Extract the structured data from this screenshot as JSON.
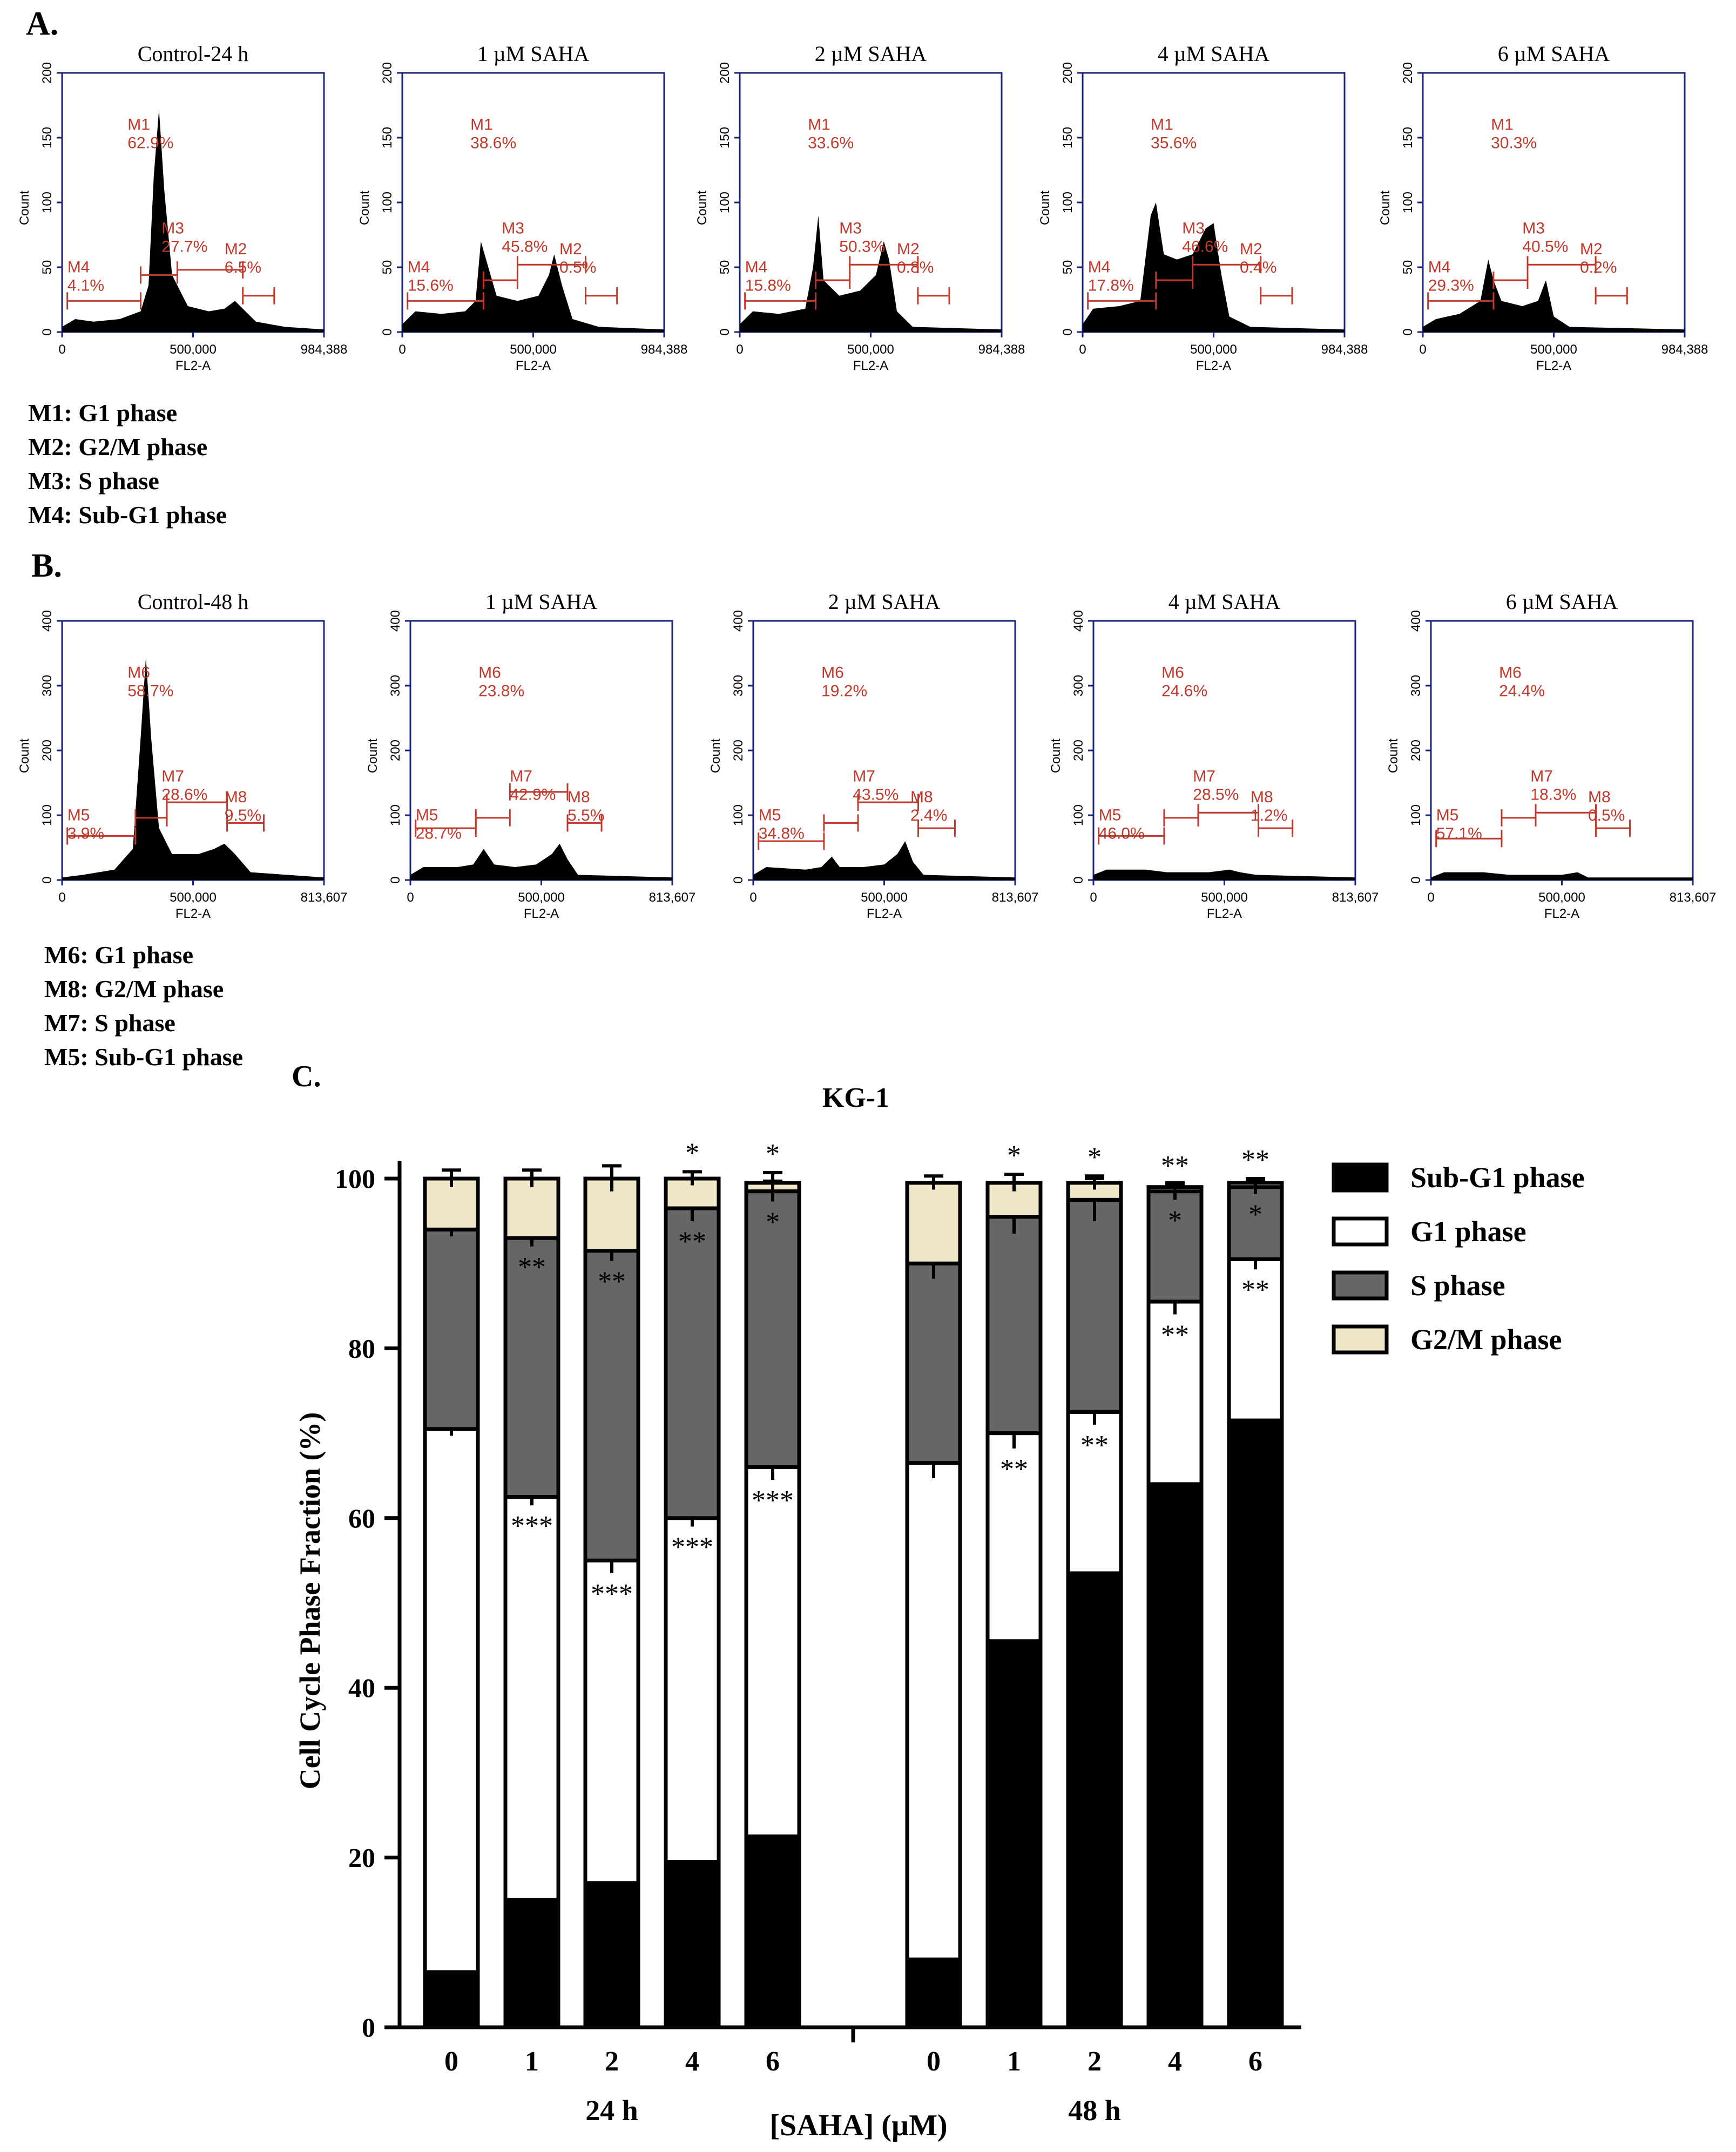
{
  "section_labels": {
    "a": "A.",
    "b": "B.",
    "c": "C."
  },
  "legend_a": [
    "M1: G1 phase",
    "M2: G2/M phase",
    "M3: S phase",
    "M4: Sub-G1 phase"
  ],
  "legend_b": [
    "M6: G1 phase",
    "M8: G2/M phase",
    "M7: S phase",
    "M5: Sub-G1 phase"
  ],
  "panel_a": {
    "y_axis_label": "Count",
    "x_axis_label": "FL2-A",
    "y_ticks": [
      "0",
      "50",
      "100",
      "150",
      "200"
    ],
    "x_ticks": [
      "0",
      "500,000",
      "984,388"
    ],
    "histograms": [
      {
        "title": "Control-24 h",
        "markers": [
          {
            "name": "M1",
            "pct": "62.9%"
          },
          {
            "name": "M3",
            "pct": "27.7%"
          },
          {
            "name": "M4",
            "pct": "4.1%"
          },
          {
            "name": "M2",
            "pct": "6.5%"
          }
        ]
      },
      {
        "title": "1 µM SAHA",
        "markers": [
          {
            "name": "M1",
            "pct": "38.6%"
          },
          {
            "name": "M3",
            "pct": "45.8%"
          },
          {
            "name": "M4",
            "pct": "15.6%"
          },
          {
            "name": "M2",
            "pct": "0.5%"
          }
        ]
      },
      {
        "title": "2 µM SAHA",
        "markers": [
          {
            "name": "M1",
            "pct": "33.6%"
          },
          {
            "name": "M3",
            "pct": "50.3%"
          },
          {
            "name": "M4",
            "pct": "15.8%"
          },
          {
            "name": "M2",
            "pct": "0.8%"
          }
        ]
      },
      {
        "title": "4 µM SAHA",
        "markers": [
          {
            "name": "M1",
            "pct": "35.6%"
          },
          {
            "name": "M3",
            "pct": "46.6%"
          },
          {
            "name": "M4",
            "pct": "17.8%"
          },
          {
            "name": "M2",
            "pct": "0.4%"
          }
        ]
      },
      {
        "title": "6 µM SAHA",
        "markers": [
          {
            "name": "M1",
            "pct": "30.3%"
          },
          {
            "name": "M3",
            "pct": "40.5%"
          },
          {
            "name": "M4",
            "pct": "29.3%"
          },
          {
            "name": "M2",
            "pct": "0.2%"
          }
        ]
      }
    ]
  },
  "panel_b": {
    "y_axis_label": "Count",
    "x_axis_label": "FL2-A",
    "y_ticks": [
      "0",
      "100",
      "200",
      "300",
      "400"
    ],
    "x_ticks": [
      "0",
      "500,000",
      "813,607"
    ],
    "histograms": [
      {
        "title": "Control-48 h",
        "markers": [
          {
            "name": "M6",
            "pct": "58.7%"
          },
          {
            "name": "M7",
            "pct": "28.6%"
          },
          {
            "name": "M5",
            "pct": "3.9%"
          },
          {
            "name": "M8",
            "pct": "9.5%"
          }
        ]
      },
      {
        "title": "1 µM SAHA",
        "markers": [
          {
            "name": "M6",
            "pct": "23.8%"
          },
          {
            "name": "M7",
            "pct": "42.9%"
          },
          {
            "name": "M5",
            "pct": "28.7%"
          },
          {
            "name": "M8",
            "pct": "5.5%"
          }
        ]
      },
      {
        "title": "2 µM SAHA",
        "markers": [
          {
            "name": "M6",
            "pct": "19.2%"
          },
          {
            "name": "M7",
            "pct": "43.5%"
          },
          {
            "name": "M5",
            "pct": "34.8%"
          },
          {
            "name": "M8",
            "pct": "2.4%"
          }
        ]
      },
      {
        "title": "4 µM SAHA",
        "markers": [
          {
            "name": "M6",
            "pct": "24.6%"
          },
          {
            "name": "M7",
            "pct": "28.5%"
          },
          {
            "name": "M5",
            "pct": "46.0%"
          },
          {
            "name": "M8",
            "pct": "1.2%"
          }
        ]
      },
      {
        "title": "6 µM SAHA",
        "markers": [
          {
            "name": "M6",
            "pct": "24.4%"
          },
          {
            "name": "M7",
            "pct": "18.3%"
          },
          {
            "name": "M5",
            "pct": "57.1%"
          },
          {
            "name": "M8",
            "pct": "0.5%"
          }
        ]
      }
    ]
  },
  "chart_data": {
    "type": "bar",
    "stacked": true,
    "title": "KG-1",
    "ylabel": "Cell Cycle Phase Fraction (%)",
    "xlabel": "[SAHA] (µM)",
    "ylim": [
      0,
      100
    ],
    "y_ticks": [
      "0",
      "20",
      "40",
      "60",
      "80",
      "100"
    ],
    "groups": [
      "24 h",
      "48 h"
    ],
    "categories": [
      "0",
      "1",
      "2",
      "4",
      "6",
      "0",
      "1",
      "2",
      "4",
      "6"
    ],
    "colors": {
      "Sub-G1 phase": "#000000",
      "G1 phase": "#ffffff",
      "S phase": "#666666",
      "G2/M phase": "#efe6c8"
    },
    "series": [
      {
        "name": "Sub-G1 phase",
        "values": [
          6.5,
          15,
          17,
          19.5,
          22.5,
          8,
          45.5,
          53.5,
          64,
          71.5
        ]
      },
      {
        "name": "G1 phase",
        "values": [
          64,
          47.5,
          38,
          40.5,
          43.5,
          58.5,
          24.5,
          19,
          21.5,
          19
        ]
      },
      {
        "name": "S phase",
        "values": [
          23.5,
          30.5,
          36.5,
          36.5,
          32.5,
          23.5,
          25.5,
          25,
          13,
          8.5
        ]
      },
      {
        "name": "G2/M phase",
        "values": [
          6,
          7,
          8.5,
          3.5,
          1,
          9.5,
          4,
          2,
          0.5,
          0.5
        ]
      }
    ],
    "error_bars": [
      [
        0.3,
        1.5,
        1.5,
        1,
        0.8,
        1.3,
        3,
        3,
        2.5,
        3.5
      ],
      [
        0.8,
        1,
        1.5,
        1,
        1.5,
        1.8,
        1.8,
        1.5,
        1.5,
        1.2
      ],
      [
        0.8,
        1,
        1.2,
        1.5,
        1.2,
        1.8,
        2,
        2.5,
        1,
        0.8
      ],
      [
        1,
        1,
        1.5,
        0.8,
        1.2,
        0.8,
        1,
        0.8,
        0.3,
        0.5
      ]
    ],
    "significance": [
      [
        "",
        "**",
        "***",
        "***",
        "***",
        "",
        "**",
        "**",
        "**",
        "**"
      ],
      [
        "",
        "***",
        "***",
        "***",
        "***",
        "",
        "**",
        "**",
        "**",
        "**"
      ],
      [
        "",
        "**",
        "**",
        "**",
        "*",
        "",
        "",
        "",
        "*",
        "*"
      ],
      [
        "",
        "",
        "",
        "*",
        "*",
        "",
        "*",
        "*",
        "**",
        "**"
      ]
    ]
  }
}
